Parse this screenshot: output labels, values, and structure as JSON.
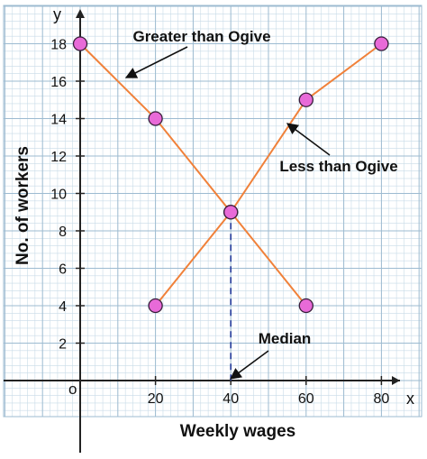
{
  "chart_data": {
    "type": "line",
    "xlabel": "Weekly wages",
    "ylabel": "No. of workers",
    "x_axis_letter": "x",
    "y_axis_letter": "y",
    "origin_label": "o",
    "xlim": [
      -20,
      90
    ],
    "ylim": [
      -2,
      20
    ],
    "x_ticks": [
      20,
      40,
      60,
      80
    ],
    "y_ticks": [
      2,
      4,
      6,
      8,
      10,
      12,
      14,
      16,
      18
    ],
    "grid": true,
    "series": [
      {
        "name": "Greater than Ogive",
        "x": [
          0,
          20,
          40,
          60
        ],
        "y": [
          18,
          14,
          9,
          4
        ]
      },
      {
        "name": "Less than Ogive",
        "x": [
          20,
          40,
          60,
          80
        ],
        "y": [
          4,
          9,
          15,
          18
        ]
      }
    ],
    "annotations": {
      "greater": "Greater than Ogive",
      "less": "Less than Ogive",
      "median": "Median"
    },
    "median_x": 40,
    "median_y": 9,
    "colors": {
      "line": "#f0813a",
      "marker_fill": "#e86ad8",
      "marker_stroke": "#3a1f3a",
      "median_line": "#233a9a",
      "grid_minor": "#c8dbe8",
      "grid_major": "#9dbbd1",
      "axis": "#222222"
    }
  }
}
